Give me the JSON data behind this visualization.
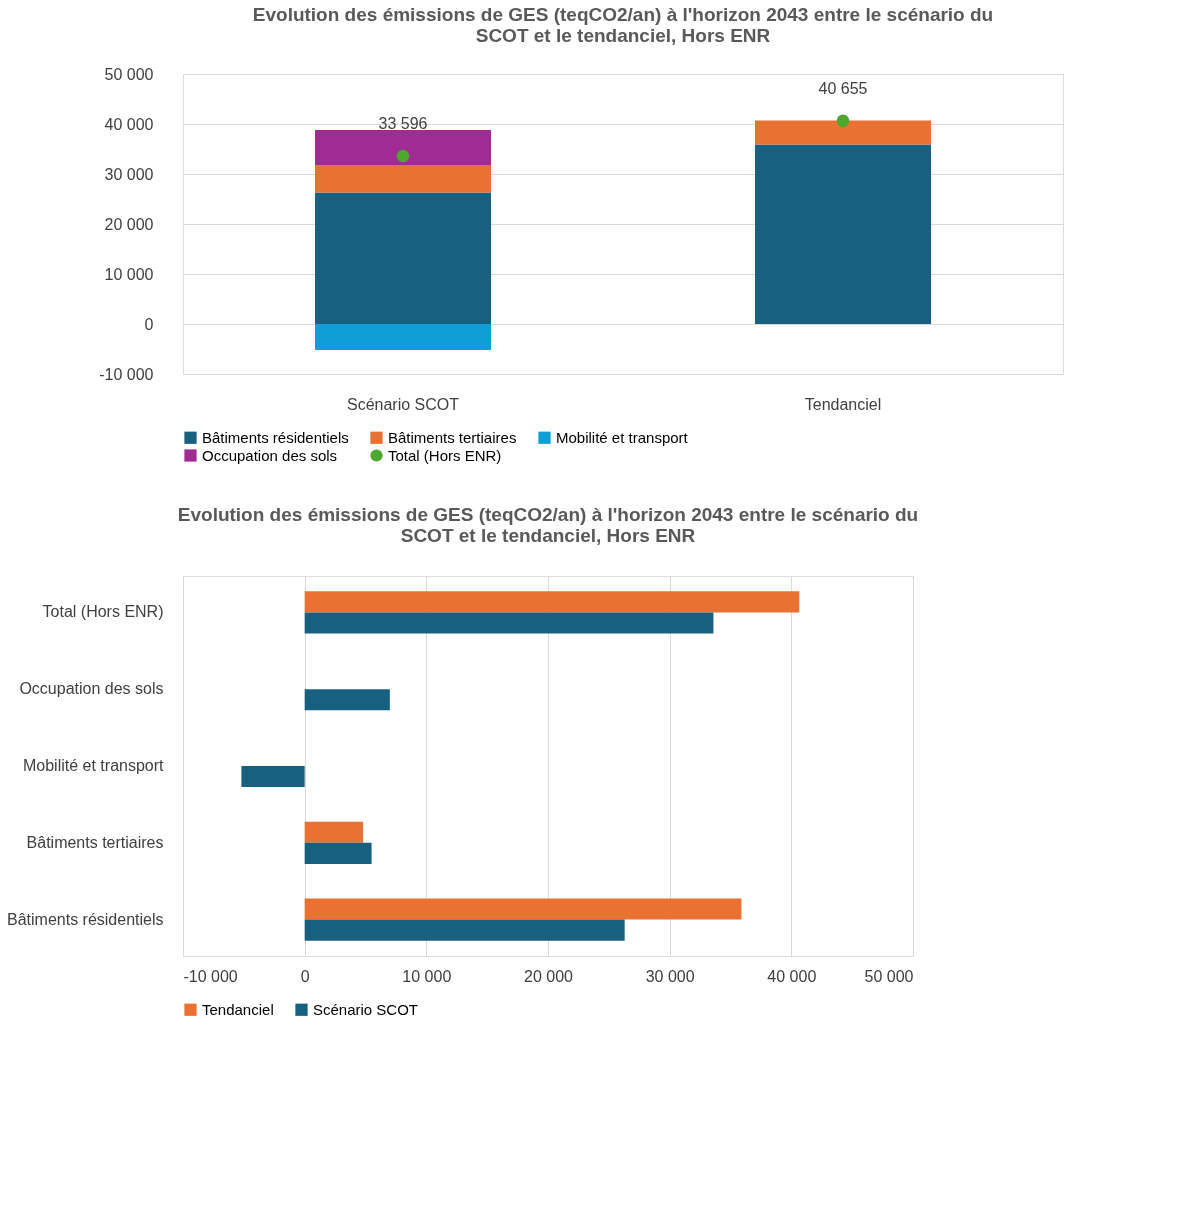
{
  "chart_data": [
    {
      "type": "bar",
      "stacked": true,
      "title": "Evolution des émissions de GES (teqCO2/an) à l'horizon 2043 entre le scénario du SCOT et le tendanciel, Hors ENR",
      "categories": [
        "Scénario SCOT",
        "Tendanciel"
      ],
      "series": [
        {
          "name": "Bâtiments résidentiels",
          "color": "#17607f",
          "values": [
            26300,
            35900
          ]
        },
        {
          "name": "Bâtiments tertiaires",
          "color": "#e97132",
          "values": [
            5500,
            4800
          ]
        },
        {
          "name": "Mobilité et transport",
          "color": "#0f9ed5",
          "values": [
            -5200,
            0
          ]
        },
        {
          "name": "Occupation des sols",
          "color": "#a02b93",
          "values": [
            7000,
            0
          ]
        },
        {
          "name": "Total (Hors ENR)",
          "type": "scatter",
          "color": "#4ea72e",
          "values": [
            33596,
            40655
          ],
          "value_labels": [
            "33 596",
            "40 655"
          ]
        }
      ],
      "ylim": [
        -10000,
        50000
      ],
      "yticks": [
        {
          "value": -10000,
          "label": "-10 000"
        },
        {
          "value": 0,
          "label": "0"
        },
        {
          "value": 10000,
          "label": "10 000"
        },
        {
          "value": 20000,
          "label": "20 000"
        },
        {
          "value": 30000,
          "label": "30 000"
        },
        {
          "value": 40000,
          "label": "40 000"
        },
        {
          "value": 50000,
          "label": "50 000"
        }
      ],
      "grid": "y",
      "legend": "bottom",
      "marker": "circle"
    },
    {
      "type": "bar",
      "orientation": "horizontal",
      "title": "Evolution des émissions de GES (teqCO2/an) à l'horizon 2043 entre le scénario du SCOT et le tendanciel, Hors ENR",
      "categories": [
        "Total (Hors ENR)",
        "Occupation des sols",
        "Mobilité et transport",
        "Bâtiments tertiaires",
        "Bâtiments résidentiels"
      ],
      "series": [
        {
          "name": "Tendanciel",
          "color": "#e97132",
          "values": [
            40655,
            0,
            0,
            4800,
            35900
          ]
        },
        {
          "name": "Scénario SCOT",
          "color": "#17607f",
          "values": [
            33596,
            7000,
            -5200,
            5500,
            26300
          ]
        }
      ],
      "xlim": [
        -10000,
        50000
      ],
      "xticks": [
        {
          "value": -10000,
          "label": "-10 000"
        },
        {
          "value": 0,
          "label": "0"
        },
        {
          "value": 10000,
          "label": "10 000"
        },
        {
          "value": 20000,
          "label": "20 000"
        },
        {
          "value": 30000,
          "label": "30 000"
        },
        {
          "value": 40000,
          "label": "40 000"
        },
        {
          "value": 50000,
          "label": "50 000"
        }
      ],
      "grid": "x",
      "legend": "bottom"
    }
  ]
}
